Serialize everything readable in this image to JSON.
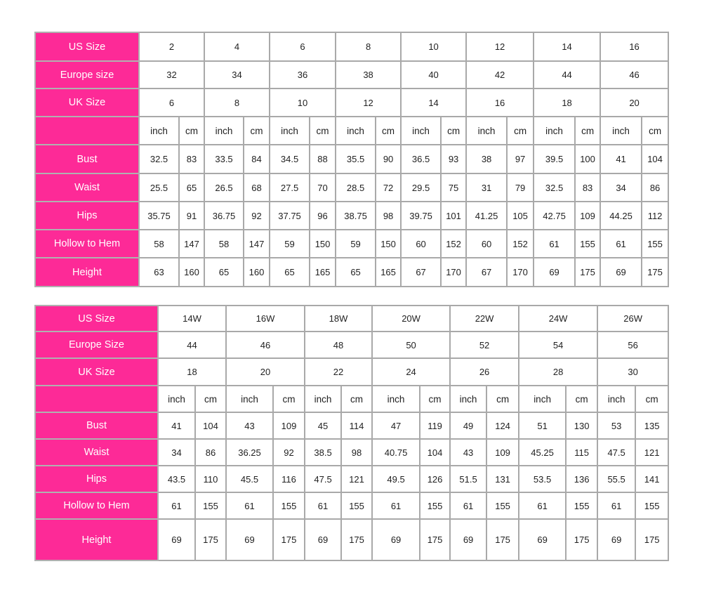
{
  "colors": {
    "label_bg": "#fd2a97",
    "label_text": "#ffffff",
    "grid": "#a9a9a9",
    "outer_border": "#1a1a1a"
  },
  "tables": [
    {
      "size_rows": [
        {
          "label": "US Size",
          "values": [
            "2",
            "4",
            "6",
            "8",
            "10",
            "12",
            "14",
            "16"
          ]
        },
        {
          "label": "Europe size",
          "values": [
            "32",
            "34",
            "36",
            "38",
            "40",
            "42",
            "44",
            "46"
          ]
        },
        {
          "label": "UK Size",
          "values": [
            "6",
            "8",
            "10",
            "12",
            "14",
            "16",
            "18",
            "20"
          ]
        }
      ],
      "unit_row": {
        "label": "",
        "units": [
          "inch",
          "cm"
        ]
      },
      "measure_rows": [
        {
          "label": "Bust",
          "values": [
            [
              "32.5",
              "83"
            ],
            [
              "33.5",
              "84"
            ],
            [
              "34.5",
              "88"
            ],
            [
              "35.5",
              "90"
            ],
            [
              "36.5",
              "93"
            ],
            [
              "38",
              "97"
            ],
            [
              "39.5",
              "100"
            ],
            [
              "41",
              "104"
            ]
          ]
        },
        {
          "label": "Waist",
          "values": [
            [
              "25.5",
              "65"
            ],
            [
              "26.5",
              "68"
            ],
            [
              "27.5",
              "70"
            ],
            [
              "28.5",
              "72"
            ],
            [
              "29.5",
              "75"
            ],
            [
              "31",
              "79"
            ],
            [
              "32.5",
              "83"
            ],
            [
              "34",
              "86"
            ]
          ]
        },
        {
          "label": "Hips",
          "values": [
            [
              "35.75",
              "91"
            ],
            [
              "36.75",
              "92"
            ],
            [
              "37.75",
              "96"
            ],
            [
              "38.75",
              "98"
            ],
            [
              "39.75",
              "101"
            ],
            [
              "41.25",
              "105"
            ],
            [
              "42.75",
              "109"
            ],
            [
              "44.25",
              "112"
            ]
          ]
        },
        {
          "label": "Hollow to Hem",
          "values": [
            [
              "58",
              "147"
            ],
            [
              "58",
              "147"
            ],
            [
              "59",
              "150"
            ],
            [
              "59",
              "150"
            ],
            [
              "60",
              "152"
            ],
            [
              "60",
              "152"
            ],
            [
              "61",
              "155"
            ],
            [
              "61",
              "155"
            ]
          ]
        },
        {
          "label": "Height",
          "values": [
            [
              "63",
              "160"
            ],
            [
              "65",
              "160"
            ],
            [
              "65",
              "165"
            ],
            [
              "65",
              "165"
            ],
            [
              "67",
              "170"
            ],
            [
              "67",
              "170"
            ],
            [
              "69",
              "175"
            ],
            [
              "69",
              "175"
            ]
          ]
        }
      ]
    },
    {
      "size_rows": [
        {
          "label": "US Size",
          "values": [
            "14W",
            "16W",
            "18W",
            "20W",
            "22W",
            "24W",
            "26W"
          ]
        },
        {
          "label": "Europe Size",
          "values": [
            "44",
            "46",
            "48",
            "50",
            "52",
            "54",
            "56"
          ]
        },
        {
          "label": "UK Size",
          "values": [
            "18",
            "20",
            "22",
            "24",
            "26",
            "28",
            "30"
          ]
        }
      ],
      "unit_row": {
        "label": "",
        "units": [
          "inch",
          "cm"
        ]
      },
      "measure_rows": [
        {
          "label": "Bust",
          "values": [
            [
              "41",
              "104"
            ],
            [
              "43",
              "109"
            ],
            [
              "45",
              "114"
            ],
            [
              "47",
              "119"
            ],
            [
              "49",
              "124"
            ],
            [
              "51",
              "130"
            ],
            [
              "53",
              "135"
            ]
          ]
        },
        {
          "label": "Waist",
          "values": [
            [
              "34",
              "86"
            ],
            [
              "36.25",
              "92"
            ],
            [
              "38.5",
              "98"
            ],
            [
              "40.75",
              "104"
            ],
            [
              "43",
              "109"
            ],
            [
              "45.25",
              "115"
            ],
            [
              "47.5",
              "121"
            ]
          ]
        },
        {
          "label": "Hips",
          "values": [
            [
              "43.5",
              "110"
            ],
            [
              "45.5",
              "116"
            ],
            [
              "47.5",
              "121"
            ],
            [
              "49.5",
              "126"
            ],
            [
              "51.5",
              "131"
            ],
            [
              "53.5",
              "136"
            ],
            [
              "55.5",
              "141"
            ]
          ]
        },
        {
          "label": "Hollow to Hem",
          "values": [
            [
              "61",
              "155"
            ],
            [
              "61",
              "155"
            ],
            [
              "61",
              "155"
            ],
            [
              "61",
              "155"
            ],
            [
              "61",
              "155"
            ],
            [
              "61",
              "155"
            ],
            [
              "61",
              "155"
            ]
          ]
        },
        {
          "label": "Height",
          "values": [
            [
              "69",
              "175"
            ],
            [
              "69",
              "175"
            ],
            [
              "69",
              "175"
            ],
            [
              "69",
              "175"
            ],
            [
              "69",
              "175"
            ],
            [
              "69",
              "175"
            ],
            [
              "69",
              "175"
            ]
          ]
        }
      ]
    }
  ]
}
